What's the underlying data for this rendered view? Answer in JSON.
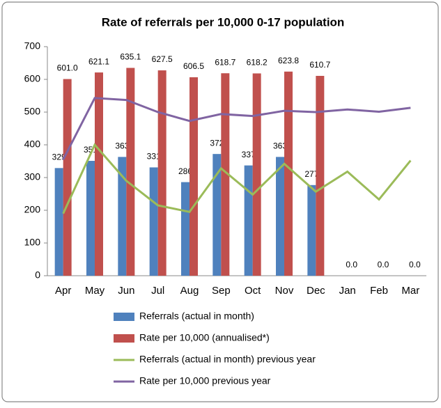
{
  "chart_data": {
    "type": "bar",
    "title": "Rate of referrals per 10,000 0-17 population",
    "categories": [
      "Apr",
      "May",
      "Jun",
      "Jul",
      "Aug",
      "Sep",
      "Oct",
      "Nov",
      "Dec",
      "Jan",
      "Feb",
      "Mar"
    ],
    "series": [
      {
        "name": "Referrals (actual in month)",
        "type": "bar",
        "color": "#4f81bd",
        "values": [
          329,
          351,
          363,
          331,
          286,
          372,
          337,
          363,
          277,
          null,
          null,
          null
        ]
      },
      {
        "name": "Rate per 10,000 (annualised*)",
        "type": "bar",
        "color": "#c0504d",
        "values": [
          601.0,
          621.1,
          635.1,
          627.5,
          606.5,
          618.7,
          618.2,
          623.8,
          610.7,
          0,
          0,
          0
        ],
        "value_labels": [
          "601.0",
          "621.1",
          "635.1",
          "627.5",
          "606.5",
          "618.7",
          "618.2",
          "623.8",
          "610.7",
          "0.0",
          "0.0",
          "0.0"
        ]
      },
      {
        "name": "Referrals (actual in month) previous year",
        "type": "line",
        "color": "#9bbb59",
        "values": [
          190,
          400,
          290,
          215,
          195,
          328,
          248,
          342,
          257,
          318,
          233,
          352
        ]
      },
      {
        "name": "Rate per 10,000 previous year",
        "type": "line",
        "color": "#8064a2",
        "values": [
          355,
          543,
          537,
          500,
          473,
          494,
          488,
          504,
          500,
          508,
          501,
          513
        ]
      }
    ],
    "ylim": [
      0,
      700
    ],
    "yticks": [
      0,
      100,
      200,
      300,
      400,
      500,
      600,
      700
    ],
    "grid": false
  }
}
